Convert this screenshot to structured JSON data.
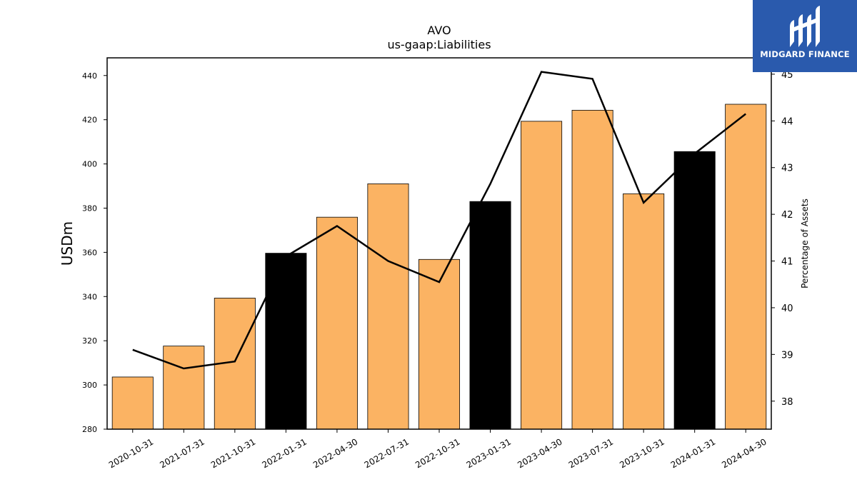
{
  "brand": {
    "name": "MIDGARD FINANCE",
    "logo_icon": "midgard-finance-logo-icon",
    "background_color": "#2a5aad"
  },
  "chart_data": {
    "type": "bar",
    "title": "AVO",
    "subtitle": "us-gaap:Liabilities",
    "ylabel": "USDm",
    "y2label": "Percentage of Assets",
    "categories": [
      "2020-10-31",
      "2021-07-31",
      "2021-10-31",
      "2022-01-31",
      "2022-04-30",
      "2022-07-31",
      "2022-10-31",
      "2023-01-31",
      "2023-04-30",
      "2023-07-31",
      "2023-10-31",
      "2024-01-31",
      "2024-04-30"
    ],
    "bar_values": [
      303.6,
      317.6,
      339.3,
      359.6,
      375.9,
      391.0,
      356.8,
      383.0,
      419.3,
      424.3,
      386.5,
      405.6,
      427.0
    ],
    "bar_colors": [
      "#fbb363",
      "#fbb363",
      "#fbb363",
      "#000000",
      "#fbb363",
      "#fbb363",
      "#fbb363",
      "#000000",
      "#fbb363",
      "#fbb363",
      "#fbb363",
      "#000000",
      "#fbb363"
    ],
    "line_values": [
      39.1,
      38.7,
      38.85,
      41.1,
      41.75,
      41.0,
      40.55,
      42.65,
      45.05,
      44.9,
      42.25,
      43.3,
      44.15
    ],
    "ylim": [
      280,
      448
    ],
    "y2lim": [
      37.4,
      45.35
    ],
    "yticks": [
      280,
      300,
      320,
      340,
      360,
      380,
      400,
      420,
      440
    ],
    "y2ticks": [
      38,
      39,
      40,
      41,
      42,
      43,
      44,
      45
    ],
    "grid": false,
    "colors": {
      "bar_default": "#fbb363",
      "bar_highlight": "#000000",
      "line": "#000000"
    }
  }
}
